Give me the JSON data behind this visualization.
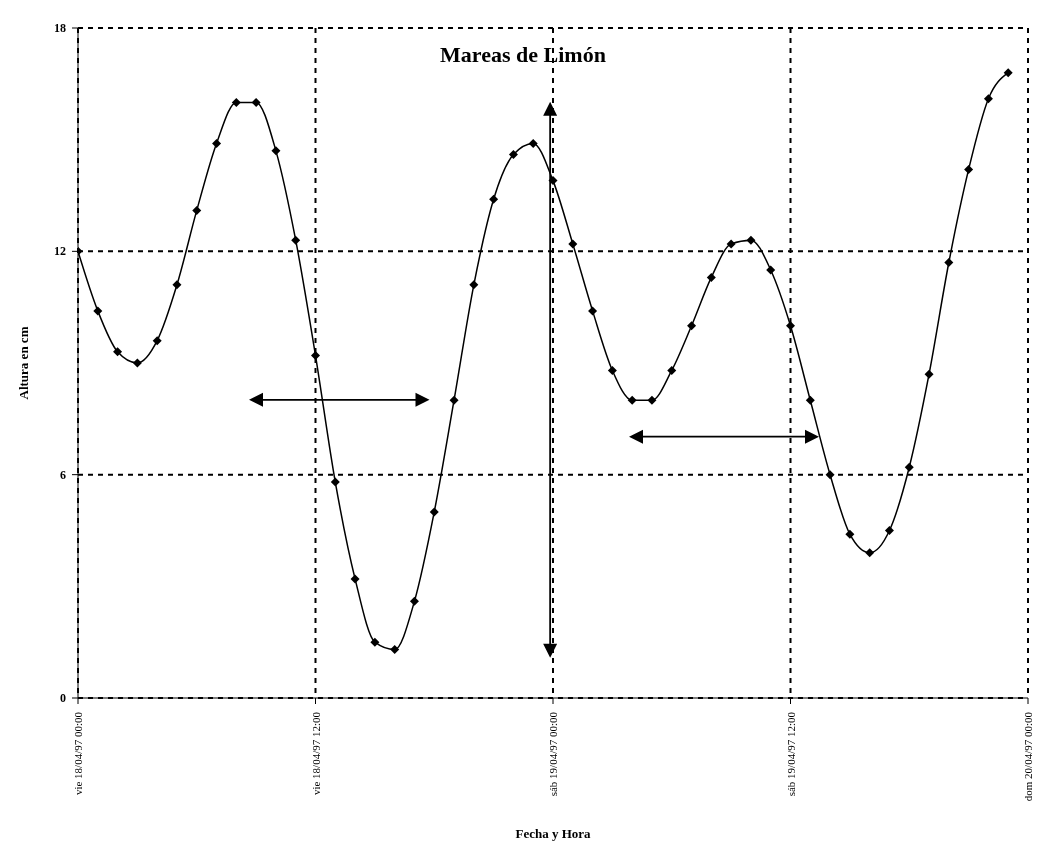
{
  "chart_data": {
    "type": "line",
    "title": "Mareas de Limón",
    "xlabel": "Fecha y Hora",
    "ylabel": "Altura en cm",
    "x": [
      "1997-04-18T00:00",
      "1997-04-18T01:00",
      "1997-04-18T02:00",
      "1997-04-18T03:00",
      "1997-04-18T04:00",
      "1997-04-18T05:00",
      "1997-04-18T06:00",
      "1997-04-18T07:00",
      "1997-04-18T08:00",
      "1997-04-18T09:00",
      "1997-04-18T10:00",
      "1997-04-18T11:00",
      "1997-04-18T12:00",
      "1997-04-18T13:00",
      "1997-04-18T14:00",
      "1997-04-18T15:00",
      "1997-04-18T16:00",
      "1997-04-18T17:00",
      "1997-04-18T18:00",
      "1997-04-18T19:00",
      "1997-04-18T20:00",
      "1997-04-18T21:00",
      "1997-04-18T22:00",
      "1997-04-18T23:00",
      "1997-04-19T00:00",
      "1997-04-19T01:00",
      "1997-04-19T02:00",
      "1997-04-19T03:00",
      "1997-04-19T04:00",
      "1997-04-19T05:00",
      "1997-04-19T06:00",
      "1997-04-19T07:00",
      "1997-04-19T08:00",
      "1997-04-19T09:00",
      "1997-04-19T10:00",
      "1997-04-19T11:00",
      "1997-04-19T12:00",
      "1997-04-19T13:00",
      "1997-04-19T14:00",
      "1997-04-19T15:00",
      "1997-04-19T16:00",
      "1997-04-19T17:00",
      "1997-04-19T18:00",
      "1997-04-19T19:00",
      "1997-04-19T20:00",
      "1997-04-19T21:00",
      "1997-04-19T22:00",
      "1997-04-19T23:00"
    ],
    "series": [
      {
        "color": "#000000",
        "values": [
          12.0,
          10.4,
          9.3,
          9.0,
          9.6,
          11.1,
          13.1,
          14.9,
          16.0,
          16.0,
          14.7,
          12.3,
          9.2,
          5.8,
          3.2,
          1.5,
          1.3,
          2.6,
          5.0,
          8.0,
          11.1,
          13.4,
          14.6,
          14.9,
          13.9,
          12.2,
          10.4,
          8.8,
          8.0,
          8.0,
          8.8,
          10.0,
          11.3,
          12.2,
          12.3,
          11.5,
          10.0,
          8.0,
          6.0,
          4.4,
          3.9,
          4.5,
          6.2,
          8.7,
          11.7,
          14.2,
          16.1,
          16.8
        ]
      }
    ],
    "xlim": [
      "1997-04-18T00:00",
      "1997-04-20T00:00"
    ],
    "xticks": [
      {
        "value": "1997-04-18T00:00",
        "label": "vie 18/04/97 00:00"
      },
      {
        "value": "1997-04-18T12:00",
        "label": "vie 18/04/97 12:00"
      },
      {
        "value": "1997-04-19T00:00",
        "label": "sáb 19/04/97 00:00"
      },
      {
        "value": "1997-04-19T12:00",
        "label": "sáb 19/04/97 12:00"
      },
      {
        "value": "1997-04-20T00:00",
        "label": "dom 20/04/97 00:00"
      }
    ],
    "ylim": [
      0,
      18
    ],
    "yticks": [
      0,
      6,
      12,
      18
    ],
    "grid": true,
    "marker": "diamond",
    "line_style": "solid"
  }
}
